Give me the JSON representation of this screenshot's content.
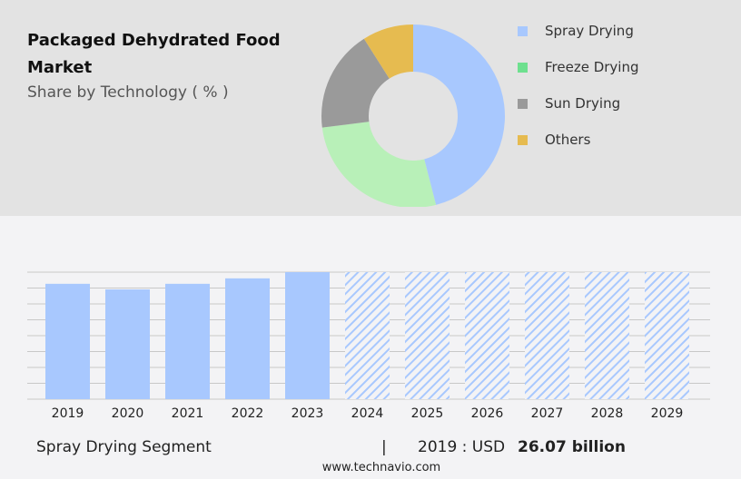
{
  "title": "Packaged Dehydrated Food Market",
  "subtitle": "Share by Technology ( % )",
  "colors": {
    "spray": "#a8c8fe",
    "freeze": "#b8f0b8",
    "sun": "#9a9a9a",
    "others": "#e6bb50",
    "legend_freeze": "#6ee08f"
  },
  "chart_data": [
    {
      "type": "pie",
      "donut": true,
      "legend_placement": "right",
      "categories": [
        "Spray Drying",
        "Freeze Drying",
        "Sun Drying",
        "Others"
      ],
      "values": [
        46,
        27,
        18,
        9
      ]
    },
    {
      "type": "bar",
      "categories": [
        "2019",
        "2020",
        "2021",
        "2022",
        "2023",
        "2024",
        "2025",
        "2026",
        "2027",
        "2028",
        "2029"
      ],
      "values": [
        26.07,
        24.8,
        26.07,
        27.3,
        28.7,
        null,
        null,
        null,
        null,
        null,
        null
      ],
      "forecast_hatched": [
        "2024",
        "2025",
        "2026",
        "2027",
        "2028",
        "2029"
      ],
      "grid": true
    }
  ],
  "footer": {
    "segment": "Spray Drying Segment",
    "divider": "|",
    "year_label": "2019 : USD",
    "value": "26.07 billion",
    "url": "www.technavio.com"
  }
}
